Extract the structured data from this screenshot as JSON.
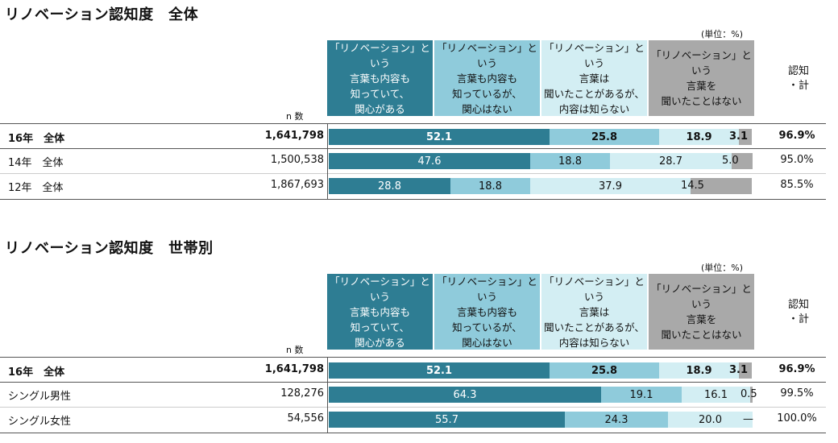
{
  "unit_label": "(単位：%)",
  "headers": [
    [
      "「リノベーション」という",
      "言葉も内容も",
      "知っていて、",
      "関心がある"
    ],
    [
      "「リノベーション」という",
      "言葉も内容も",
      "知っているが、",
      "関心はない"
    ],
    [
      "「リノベーション」という",
      "言葉は",
      "聞いたことがあるが、",
      "内容は知らない"
    ],
    [
      "「リノベーション」という",
      "言葉を",
      "聞いたことはない"
    ]
  ],
  "ninchi_label": [
    "認知",
    "・計"
  ],
  "n_label": "n 数",
  "colors": {
    "seg0": "#2e7d93",
    "seg1": "#8fcbdb",
    "seg2": "#d3eef3",
    "seg3": "#a9a9a9"
  },
  "chart_data": [
    {
      "type": "bar",
      "orientation": "horizontal-stacked-100",
      "title": "リノベーション認知度　全体",
      "series_names": [
        "「リノベーション」という言葉も内容も知っていて、関心がある",
        "「リノベーション」という言葉も内容も知っているが、関心はない",
        "「リノベーション」という言葉は聞いたことがあるが、内容は知らない",
        "「リノベーション」という言葉を聞いたことはない"
      ],
      "rows": [
        {
          "label": "16年　全体",
          "n": "1,641,798",
          "values": [
            52.1,
            25.8,
            18.9,
            3.1
          ],
          "labels": [
            "52.1",
            "25.8",
            "18.9",
            "3.1"
          ],
          "total": "96.9%",
          "bold": true
        },
        {
          "label": "14年　全体",
          "n": "1,500,538",
          "values": [
            47.6,
            18.8,
            28.7,
            5.0
          ],
          "labels": [
            "47.6",
            "18.8",
            "28.7",
            "5.0"
          ],
          "total": "95.0%",
          "bold": false
        },
        {
          "label": "12年　全体",
          "n": "1,867,693",
          "values": [
            28.8,
            18.8,
            37.9,
            14.5
          ],
          "labels": [
            "28.8",
            "18.8",
            "37.9",
            "14.5"
          ],
          "total": "85.5%",
          "bold": false
        }
      ]
    },
    {
      "type": "bar",
      "orientation": "horizontal-stacked-100",
      "title": "リノベーション認知度　世帯別",
      "series_names": [
        "「リノベーション」という言葉も内容も知っていて、関心がある",
        "「リノベーション」という言葉も内容も知っているが、関心はない",
        "「リノベーション」という言葉は聞いたことがあるが、内容は知らない",
        "「リノベーション」という言葉を聞いたことはない"
      ],
      "rows": [
        {
          "label": "16年　全体",
          "n": "1,641,798",
          "values": [
            52.1,
            25.8,
            18.9,
            3.1
          ],
          "labels": [
            "52.1",
            "25.8",
            "18.9",
            "3.1"
          ],
          "total": "96.9%",
          "bold": true
        },
        {
          "label": "シングル男性",
          "n": "128,276",
          "values": [
            64.3,
            19.1,
            16.1,
            0.5
          ],
          "labels": [
            "64.3",
            "19.1",
            "16.1",
            "0.5"
          ],
          "total": "99.5%",
          "bold": false
        },
        {
          "label": "シングル女性",
          "n": "54,556",
          "values": [
            55.7,
            24.3,
            20.0,
            0.0
          ],
          "labels": [
            "55.7",
            "24.3",
            "20.0",
            "—"
          ],
          "total": "100.0%",
          "bold": false
        }
      ]
    }
  ]
}
